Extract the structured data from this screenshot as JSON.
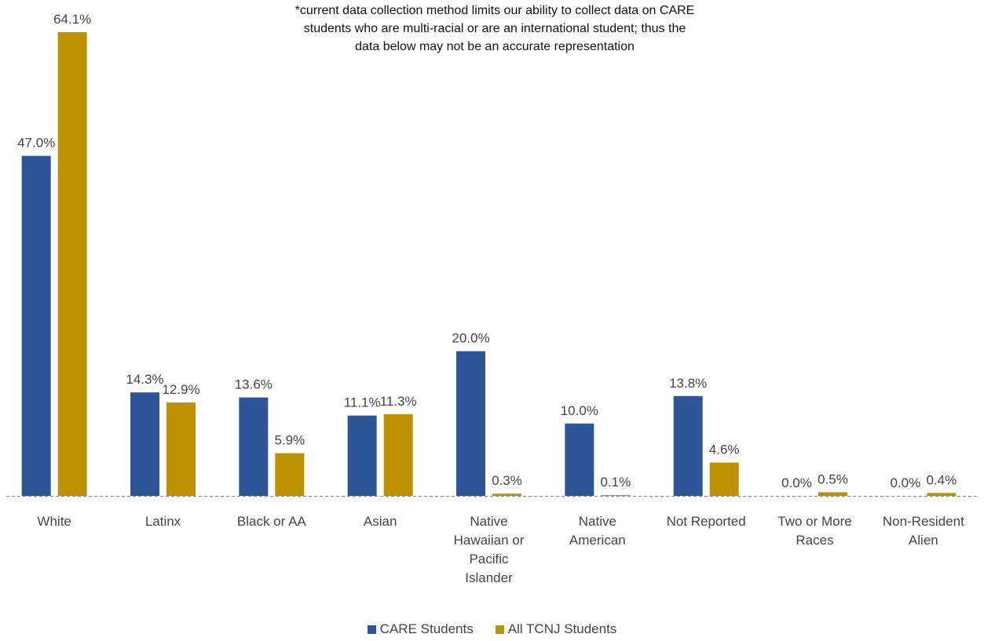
{
  "note": {
    "lines": [
      "*current data collection method limits our ability to collect data on CARE",
      "students who are multi-racial or are an international student; thus the",
      "data below may not be an accurate representation"
    ]
  },
  "chart_data": {
    "type": "bar",
    "categories": [
      [
        "White"
      ],
      [
        "Latinx"
      ],
      [
        "Black or AA"
      ],
      [
        "Asian"
      ],
      [
        "Native",
        "Hawaiian or",
        "Pacific",
        "Islander"
      ],
      [
        "Native",
        "American"
      ],
      [
        "Not Reported"
      ],
      [
        "Two or More",
        "Races"
      ],
      [
        "Non-Resident",
        "Alien"
      ]
    ],
    "series": [
      {
        "name": "CARE Students",
        "color": "#2E5597",
        "values": [
          47.0,
          14.3,
          13.6,
          11.1,
          20.0,
          10.0,
          13.8,
          0.0,
          0.0
        ],
        "labels": [
          "47.0%",
          "14.3%",
          "13.6%",
          "11.1%",
          "20.0%",
          "10.0%",
          "13.8%",
          "0.0%",
          "0.0%"
        ]
      },
      {
        "name": "All TCNJ Students",
        "color": "#BF9000",
        "values": [
          64.1,
          12.9,
          5.9,
          11.3,
          0.3,
          0.1,
          4.6,
          0.5,
          0.4
        ],
        "labels": [
          "64.1%",
          "12.9%",
          "5.9%",
          "11.3%",
          "0.3%",
          "0.1%",
          "4.6%",
          "0.5%",
          "0.4%"
        ]
      }
    ],
    "ylim": [
      0,
      70
    ],
    "grid": false,
    "legend_position": "bottom"
  }
}
